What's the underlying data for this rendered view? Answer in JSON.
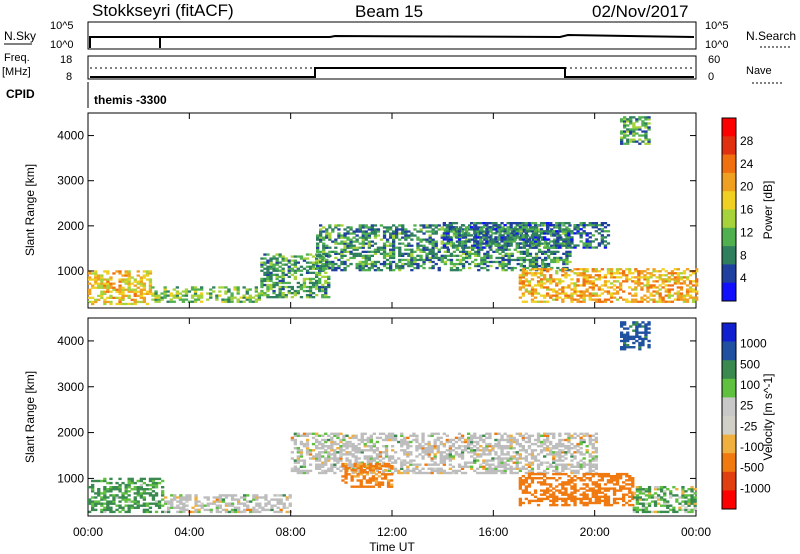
{
  "header": {
    "station": "Stokkseyri (fitACF)",
    "beam": "Beam 15",
    "date": "02/Nov/2017"
  },
  "top_panels": {
    "nsky_label": "N.Sky",
    "nsky_ticks": [
      "10^5",
      "10^0"
    ],
    "nsearch_label": "N.Search",
    "nsearch_ticks": [
      "10^5",
      "10^0"
    ],
    "freq_label_1": "Freq.",
    "freq_label_2": "[MHz]",
    "freq_ticks": [
      "18",
      "8"
    ],
    "nave_label": "Nave",
    "nave_ticks": [
      "60",
      "0"
    ],
    "cpid_label": "CPID",
    "cpid_value": "themis -3300"
  },
  "colors": {
    "power_scale": [
      "#1010ff",
      "#2040a0",
      "#2f7f5f",
      "#50b050",
      "#a6d23c",
      "#f0d020",
      "#f0a020",
      "#f07010",
      "#e03010",
      "#ff0000"
    ],
    "velocity_scale": [
      "#ff0000",
      "#e04010",
      "#f07a10",
      "#f0b040",
      "#d0d0c8",
      "#c8c8c8",
      "#60c040",
      "#3a8a50",
      "#2050a0",
      "#1020d0"
    ],
    "ground_scatter": "#bdbdbd"
  },
  "chart_data": [
    {
      "type": "heatmap",
      "title": "",
      "xlabel": "Time UT",
      "ylabel": "Slant Range [km]",
      "x_ticks": [
        "00:00",
        "04:00",
        "08:00",
        "12:00",
        "16:00",
        "20:00",
        "00:00"
      ],
      "xlim_hours": [
        0,
        24
      ],
      "y_ticks": [
        "1000",
        "2000",
        "3000",
        "4000"
      ],
      "ylim": [
        180,
        4500
      ],
      "colorbar": {
        "label": "Power [dB]",
        "ticks": [
          "4",
          "8",
          "12",
          "16",
          "20",
          "24",
          "28"
        ],
        "range": [
          0,
          32
        ]
      },
      "echo_regions": [
        {
          "t0": 0.0,
          "t1": 2.5,
          "r0": 250,
          "r1": 1000,
          "value": 18
        },
        {
          "t0": 2.5,
          "t1": 6.8,
          "r0": 300,
          "r1": 650,
          "value": 12
        },
        {
          "t0": 6.8,
          "t1": 9.5,
          "r0": 400,
          "r1": 1350,
          "value": 10
        },
        {
          "t0": 9.0,
          "t1": 19.0,
          "r0": 1000,
          "r1": 2000,
          "value": 9
        },
        {
          "t0": 14.0,
          "t1": 20.5,
          "r0": 1500,
          "r1": 2050,
          "value": 7
        },
        {
          "t0": 17.0,
          "t1": 24.0,
          "r0": 300,
          "r1": 1050,
          "value": 20
        },
        {
          "t0": 21.0,
          "t1": 22.2,
          "r0": 3800,
          "r1": 4400,
          "value": 10
        }
      ]
    },
    {
      "type": "heatmap",
      "title": "",
      "xlabel": "Time UT",
      "ylabel": "Slant Range [km]",
      "x_ticks": [
        "00:00",
        "04:00",
        "08:00",
        "12:00",
        "16:00",
        "20:00",
        "00:00"
      ],
      "xlim_hours": [
        0,
        24
      ],
      "y_ticks": [
        "1000",
        "2000",
        "3000",
        "4000"
      ],
      "ylim": [
        180,
        4500
      ],
      "colorbar": {
        "label": "Velocity [m s^-1]",
        "ticks": [
          "1000",
          "500",
          "100",
          "25",
          "-25",
          "-100",
          "-500",
          "-1000"
        ],
        "range": [
          -1000,
          1000
        ]
      },
      "echo_regions": [
        {
          "t0": 0.0,
          "t1": 3.0,
          "r0": 250,
          "r1": 1000,
          "value": 150
        },
        {
          "t0": 3.0,
          "t1": 8.0,
          "r0": 250,
          "r1": 650,
          "value": 0
        },
        {
          "t0": 8.0,
          "t1": 20.0,
          "r0": 1100,
          "r1": 2000,
          "value": 0
        },
        {
          "t0": 10.0,
          "t1": 12.0,
          "r0": 800,
          "r1": 1300,
          "value": -200
        },
        {
          "t0": 17.0,
          "t1": 21.5,
          "r0": 400,
          "r1": 1100,
          "value": -250
        },
        {
          "t0": 21.5,
          "t1": 24.0,
          "r0": 250,
          "r1": 800,
          "value": 80
        },
        {
          "t0": 21.0,
          "t1": 22.2,
          "r0": 3800,
          "r1": 4400,
          "value": 600
        }
      ]
    }
  ]
}
